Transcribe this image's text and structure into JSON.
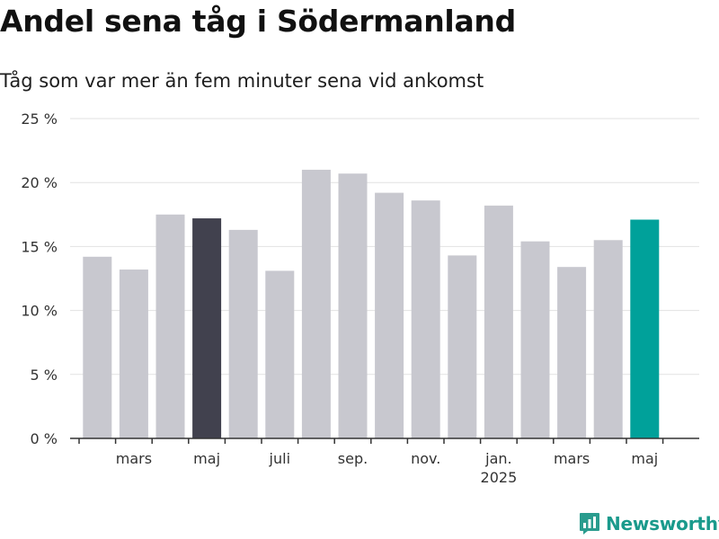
{
  "title": "Andel sena tåg i Södermanland",
  "subtitle": "Tåg som var mer än fem minuter sena vid ankomst",
  "brand": {
    "name": "Newsworthy",
    "icon": "newsworthy-logo-icon",
    "color": "#1a9a8c"
  },
  "chart_data": {
    "type": "bar",
    "y_axis": {
      "ylim": [
        0,
        25
      ],
      "ticks": [
        0,
        5,
        10,
        15,
        20,
        25
      ],
      "tick_labels": [
        "0 %",
        "5 %",
        "10 %",
        "15 %",
        "20 %",
        "25 %"
      ]
    },
    "x_tick_labels": [
      {
        "index": 1,
        "label": "mars"
      },
      {
        "index": 3,
        "label": "maj"
      },
      {
        "index": 5,
        "label": "juli"
      },
      {
        "index": 7,
        "label": "sep."
      },
      {
        "index": 9,
        "label": "nov."
      },
      {
        "index": 11,
        "label": "jan.",
        "sublabel": "2025"
      },
      {
        "index": 13,
        "label": "mars"
      },
      {
        "index": 15,
        "label": "maj"
      }
    ],
    "values": [
      14.2,
      13.2,
      17.5,
      17.2,
      16.3,
      13.1,
      21.0,
      20.7,
      19.2,
      18.6,
      14.3,
      18.2,
      15.4,
      13.4,
      15.5,
      17.1
    ],
    "highlight": {
      "3": "#41414e",
      "15": "#00a19a"
    },
    "colors": {
      "bar": "#c8c8cf",
      "grid": "#e2e2e2",
      "axis": "#333333"
    },
    "grid": true
  }
}
